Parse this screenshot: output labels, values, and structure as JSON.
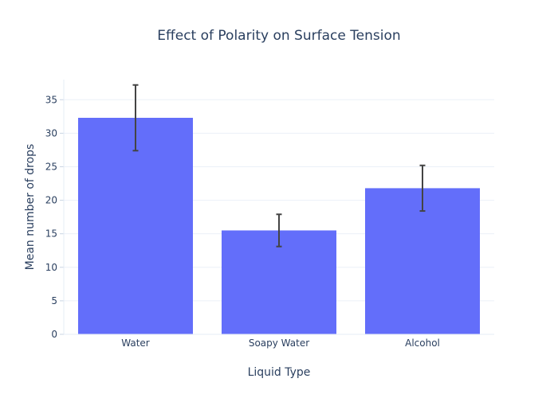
{
  "chart_data": {
    "type": "bar",
    "title": "Effect of Polarity on Surface Tension",
    "xlabel": "Liquid Type",
    "ylabel": "Mean number of drops",
    "categories": [
      "Water",
      "Soapy Water",
      "Alcohol"
    ],
    "values": [
      32.3,
      15.5,
      21.8
    ],
    "error_bars": [
      4.9,
      2.4,
      3.4
    ],
    "ylim": [
      0,
      38
    ],
    "yticks": [
      0,
      5,
      10,
      15,
      20,
      25,
      30,
      35
    ],
    "grid": true,
    "bar_color": "#636efa",
    "error_bar_color": "#444444",
    "grid_color": "#ebf0f8",
    "text_color": "#2a3f5f"
  }
}
